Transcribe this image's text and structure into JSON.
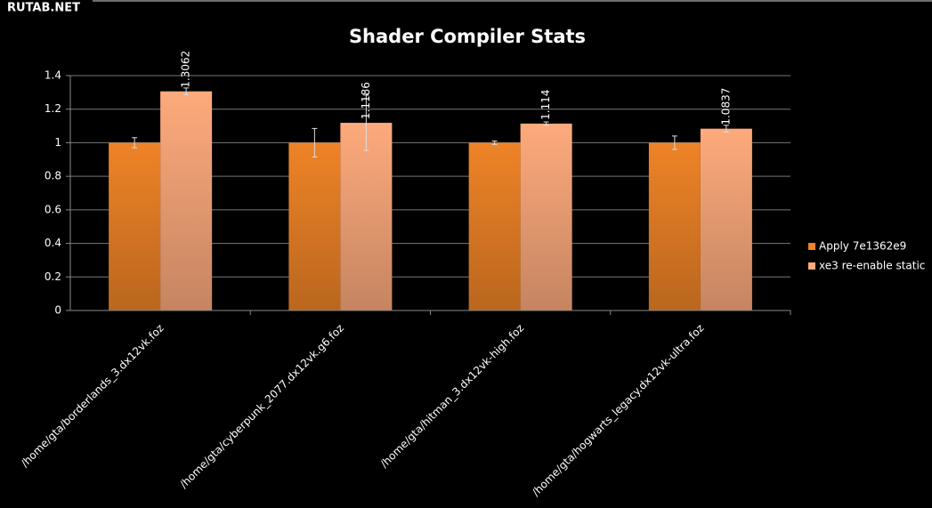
{
  "watermark": "RUTAB.NET",
  "chart_data": {
    "type": "bar",
    "title": "Shader Compiler Stats",
    "categories": [
      "/home/gta/borderlands_3.dx12vk.foz",
      "/home/gta/cyberpunk_2077.dx12vk.g6.foz",
      "/home/gta/hitman_3.dx12vk-high.foz",
      "/home/gta/hogwarts_legacy.dx12vk-ultra.foz"
    ],
    "series": [
      {
        "name": "Apply 7e1362e9",
        "color": "#ee8327",
        "values": [
          1,
          1,
          1,
          1
        ],
        "errors": [
          0.03,
          0.085,
          0.01,
          0.04
        ],
        "data_labels": false
      },
      {
        "name": "xe3 re-enable static",
        "color": "#fdaa7c",
        "values": [
          1.3062,
          1.1186,
          1.114,
          1.0837
        ],
        "errors": [
          0.02,
          0.165,
          0.01,
          0.02
        ],
        "data_labels": true
      }
    ],
    "ylim": [
      0,
      1.4
    ],
    "yticks": [
      0,
      0.2,
      0.4,
      0.6,
      0.8,
      1,
      1.2,
      1.4
    ],
    "grid": true,
    "legend": "right"
  }
}
